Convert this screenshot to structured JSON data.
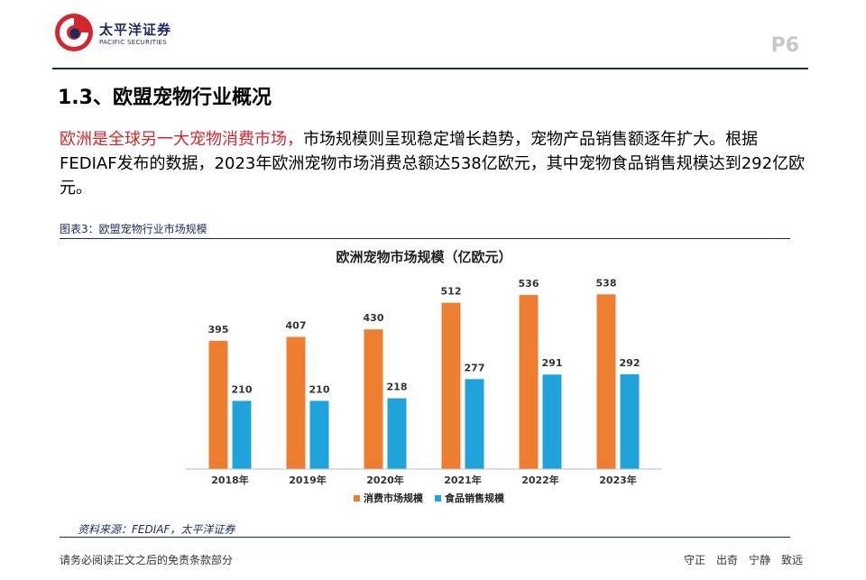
{
  "header": {
    "logo_cn": "太平洋证券",
    "logo_en": "PACIFIC SECURITIES",
    "page_number": "P6",
    "colors": {
      "brand_navy": "#1d2b5c",
      "brand_red": "#d0282e"
    }
  },
  "section": {
    "title": "1.3、欧盟宠物行业概况",
    "paragraph_highlight": "欧洲是全球另一大宠物消费市场，",
    "paragraph_rest": "市场规模则呈现稳定增长趋势，宠物产品销售额逐年扩大。根据FEDIAF发布的数据，2023年欧洲宠物市场消费总额达538亿欧元，其中宠物食品销售规模达到292亿欧元。"
  },
  "figure": {
    "label": "图表3：欧盟宠物行业市场规模",
    "source": "资料来源：FEDIAF，太平洋证券"
  },
  "chart_data": {
    "type": "bar",
    "title": "欧洲宠物市场规模（亿欧元）",
    "categories": [
      "2018年",
      "2019年",
      "2020年",
      "2021年",
      "2022年",
      "2023年"
    ],
    "series": [
      {
        "name": "消费市场规模",
        "values": [
          395,
          407,
          430,
          512,
          536,
          538
        ],
        "color": "#ed7d31"
      },
      {
        "name": "食品销售规模",
        "values": [
          210,
          210,
          218,
          277,
          291,
          292
        ],
        "color": "#1fa3da"
      }
    ],
    "ylim": [
      0,
      600
    ],
    "grid": false,
    "legend": "bottom"
  },
  "footer": {
    "disclaimer": "请务必阅读正文之后的免责条款部分",
    "motto": [
      "守正",
      "出奇",
      "宁静",
      "致远"
    ]
  }
}
